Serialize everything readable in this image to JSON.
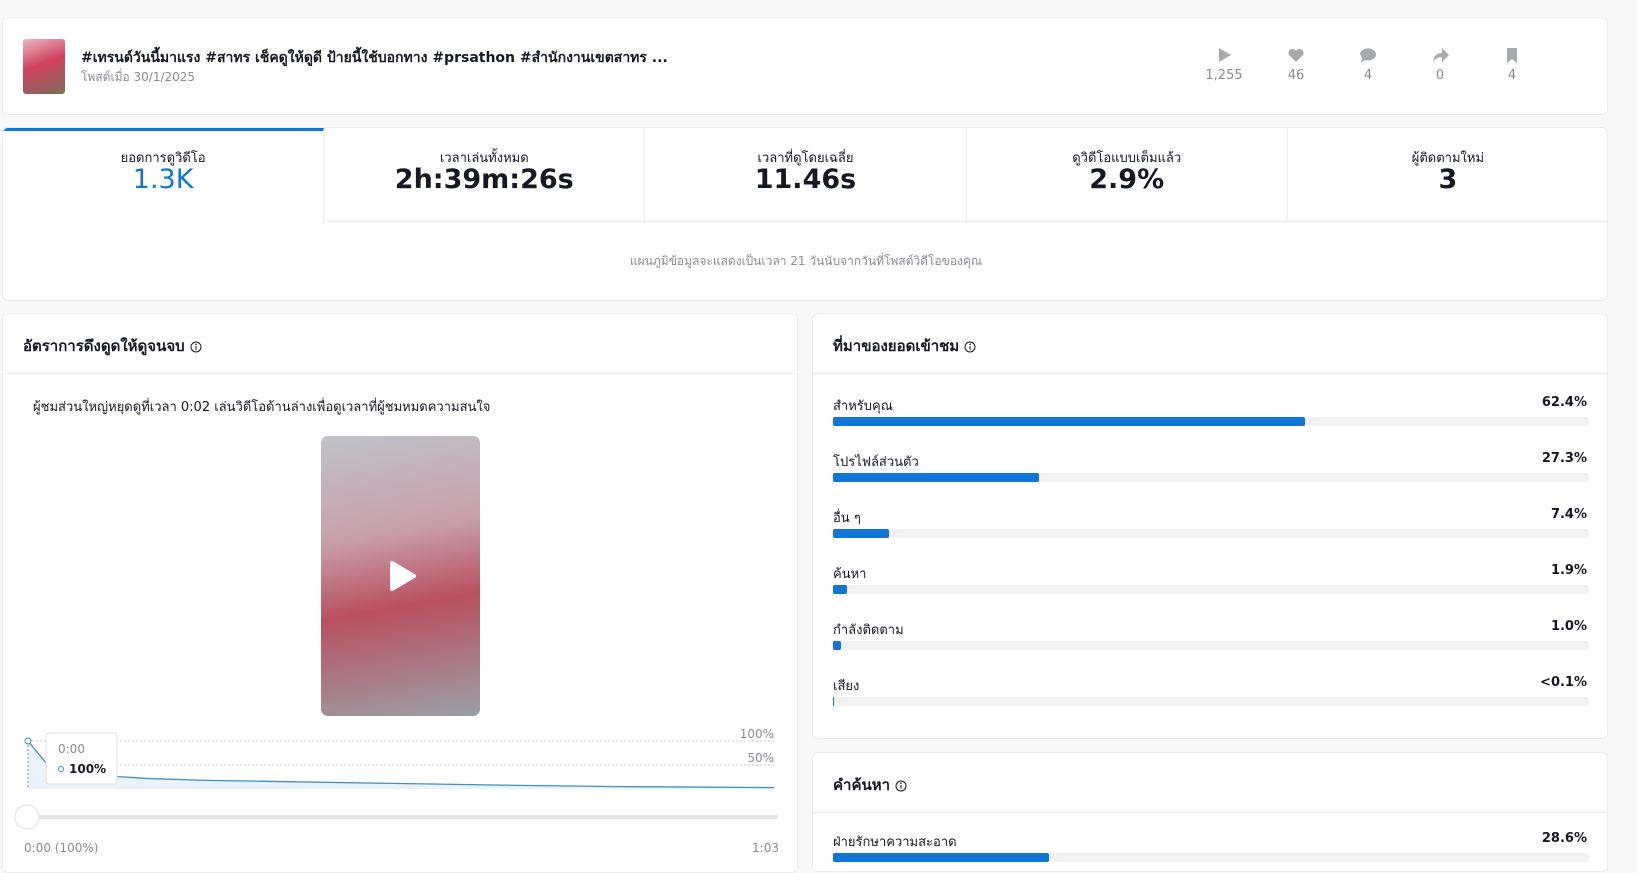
{
  "post": {
    "title": "#เทรนด์วันนี้มาแรง #สาทร เช็คดูให้ดูดี ป้ายนี้ใช้บอกทาง #prsathon #สำนักงานเขตสาทร ...",
    "date": "โพสต์เมื่อ 30/1/2025",
    "stats": [
      "1,255",
      "46",
      "4",
      "0",
      "4"
    ]
  },
  "metrics": {
    "items": [
      {
        "label": "ยอดการดูวิดีโอ",
        "value": "1.3K"
      },
      {
        "label": "เวลาเล่นทั้งหมด",
        "value": "2h:39m:26s"
      },
      {
        "label": "เวลาที่ดูโดยเฉลี่ย",
        "value": "11.46s"
      },
      {
        "label": "ดูวิดีโอแบบเต็มแล้ว",
        "value": "2.9%"
      },
      {
        "label": "ผู้ติดตามใหม่",
        "value": "3"
      }
    ],
    "note": "แผนภูมิข้อมูลจะแสดงเป็นเวลา 21 วันนับจากวันที่โพสต์วิดีโอของคุณ"
  },
  "retention": {
    "title": "อัตราการดึงดูดให้ดูจนจบ",
    "description": "ผู้ชมส่วนใหญ่หยุดดูที่เวลา 0:02 เล่นวิดีโอด้านล่างเพื่อดูเวลาที่ผู้ชมหมดความสนใจ",
    "chart": {
      "type": "line",
      "x": [
        0,
        2,
        5,
        10,
        15,
        20,
        30,
        40,
        50,
        63
      ],
      "values": [
        100,
        40,
        30,
        22,
        18,
        16,
        12,
        8,
        5,
        3
      ],
      "xlim": [
        0,
        63
      ],
      "ylim": [
        0,
        100
      ],
      "yticks": [
        {
          "value": 100,
          "label": "100%"
        },
        {
          "value": 50,
          "label": "50%"
        }
      ],
      "color": "#3d8fce",
      "tooltip": {
        "time": "0:00",
        "value": "100%"
      },
      "start_label": "0:00 (100%)",
      "end_label": "1:03"
    }
  },
  "traffic": {
    "title": "ที่มาของยอดเข้าชม",
    "items": [
      {
        "name": "สำหรับคุณ",
        "value": 62.4,
        "label": "62.4%"
      },
      {
        "name": "โปรไฟล์ส่วนตัว",
        "value": 27.3,
        "label": "27.3%"
      },
      {
        "name": "อื่น ๆ",
        "value": 7.4,
        "label": "7.4%"
      },
      {
        "name": "ค้นหา",
        "value": 1.9,
        "label": "1.9%"
      },
      {
        "name": "กำลังติดตาม",
        "value": 1.0,
        "label": "1.0%"
      },
      {
        "name": "เสียง",
        "value": 0.04,
        "label": "<0.1%"
      }
    ]
  },
  "search": {
    "title": "คำค้นหา",
    "items": [
      {
        "name": "ฝ่ายรักษาความสะอาด",
        "value": 28.6,
        "label": "28.6%"
      }
    ]
  }
}
